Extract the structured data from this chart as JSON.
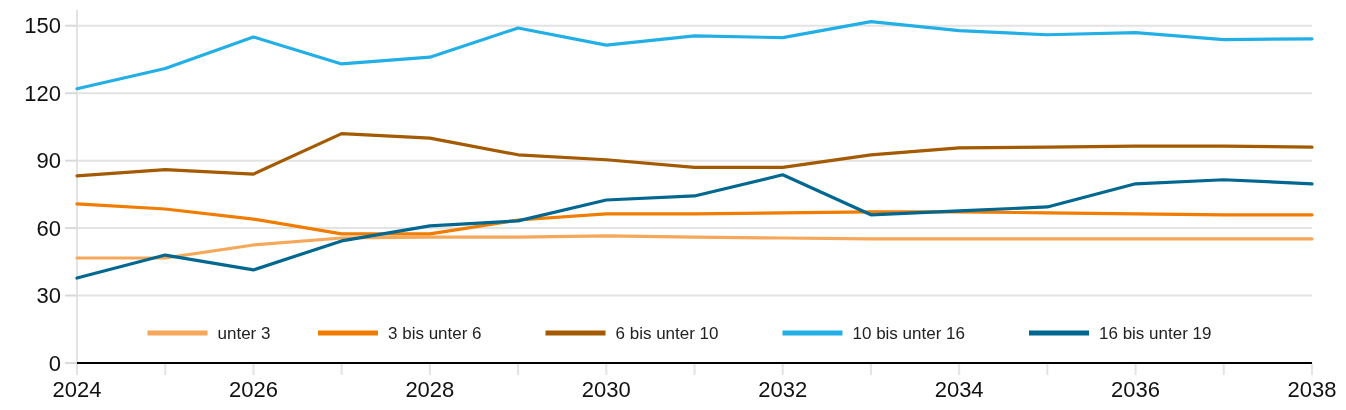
{
  "chart_data": {
    "type": "line",
    "x": [
      2024,
      2025,
      2026,
      2027,
      2028,
      2029,
      2030,
      2031,
      2032,
      2033,
      2034,
      2035,
      2036,
      2037,
      2038
    ],
    "xlim": [
      2024,
      2038
    ],
    "xticks": [
      2024,
      {
        "value": 2025,
        "label": null
      },
      2026,
      {
        "value": 2027,
        "label": null
      },
      2028,
      {
        "value": 2029,
        "label": null
      },
      2030,
      {
        "value": 2031,
        "label": null
      },
      2032,
      {
        "value": 2033,
        "label": null
      },
      2034,
      {
        "value": 2035,
        "label": null
      },
      2036,
      {
        "value": 2037,
        "label": null
      },
      2038
    ],
    "ylim": [
      0,
      157
    ],
    "yticks": [
      0,
      30,
      60,
      90,
      120,
      150
    ],
    "grid": "y",
    "legend": "bottom",
    "line_style": "solid",
    "marker": "none",
    "series": [
      {
        "name": "unter 3",
        "color": "#f5a85a",
        "values": [
          46.7,
          46.7,
          52.5,
          55.6,
          56,
          56,
          56.5,
          56,
          55.6,
          55.2,
          55.2,
          55.2,
          55.2,
          55.2,
          55.2
        ]
      },
      {
        "name": "3 bis unter 6",
        "color": "#f07c00",
        "values": [
          70.8,
          68.5,
          64,
          57.4,
          57.4,
          63.6,
          66.3,
          66.3,
          66.8,
          67.2,
          67.2,
          66.8,
          66.3,
          65.9,
          65.9
        ]
      },
      {
        "name": "6 bis unter 10",
        "color": "#a35a00",
        "values": [
          83.2,
          86,
          84,
          102,
          100,
          92.6,
          90.4,
          87,
          87,
          92.6,
          95.7,
          96,
          96.5,
          96.5,
          96
        ]
      },
      {
        "name": "10 bis unter 16",
        "color": "#22afe6",
        "values": [
          122,
          131,
          145,
          133,
          136,
          149,
          141.4,
          145.5,
          144.7,
          151.8,
          147.8,
          146,
          146.9,
          143.8,
          144.2
        ]
      },
      {
        "name": "16 bis unter 19",
        "color": "#006890",
        "values": [
          37.8,
          48,
          41.4,
          54.3,
          61,
          63.2,
          72.5,
          74.3,
          83.7,
          65.9,
          67.7,
          69.4,
          79.7,
          81.5,
          79.7
        ]
      }
    ]
  }
}
